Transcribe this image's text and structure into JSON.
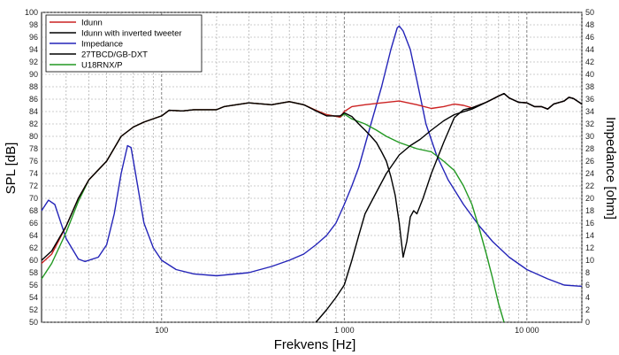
{
  "chart_data": {
    "type": "line",
    "xlabel": "Frekvens [Hz]",
    "ylabel": "SPL [dB]",
    "y2label": "Impedance [ohm]",
    "xscale": "log",
    "xlim": [
      22,
      20000
    ],
    "ylim": [
      50,
      100
    ],
    "y2lim": [
      0,
      50
    ],
    "x_tick_labels": [
      "100",
      "1 000",
      "10 000"
    ],
    "y_tick_labels": [
      "50",
      "52",
      "54",
      "56",
      "58",
      "60",
      "62",
      "64",
      "66",
      "68",
      "70",
      "72",
      "74",
      "76",
      "78",
      "80",
      "82",
      "84",
      "86",
      "88",
      "90",
      "92",
      "94",
      "96",
      "98",
      "100"
    ],
    "y2_tick_labels": [
      "0",
      "2",
      "4",
      "6",
      "8",
      "10",
      "12",
      "14",
      "16",
      "18",
      "20",
      "22",
      "24",
      "26",
      "28",
      "30",
      "32",
      "34",
      "36",
      "38",
      "40",
      "42",
      "44",
      "46",
      "48",
      "50"
    ],
    "grid": true,
    "legend_position": "top-left",
    "series": [
      {
        "name": "Idunn",
        "color": "#cc2222",
        "axis": "left",
        "points": [
          [
            22,
            59.5
          ],
          [
            25,
            61
          ],
          [
            30,
            65.5
          ],
          [
            35,
            70
          ],
          [
            40,
            73
          ],
          [
            50,
            76
          ],
          [
            60,
            80
          ],
          [
            70,
            81.5
          ],
          [
            80,
            82.3
          ],
          [
            100,
            83.3
          ],
          [
            110,
            84.2
          ],
          [
            130,
            84.1
          ],
          [
            150,
            84.3
          ],
          [
            200,
            84.3
          ],
          [
            220,
            84.8
          ],
          [
            300,
            85.4
          ],
          [
            400,
            85.1
          ],
          [
            500,
            85.6
          ],
          [
            600,
            85.1
          ],
          [
            700,
            84.2
          ],
          [
            800,
            83.5
          ],
          [
            950,
            83.1
          ],
          [
            1000,
            84
          ],
          [
            1100,
            84.8
          ],
          [
            1300,
            85.1
          ],
          [
            1600,
            85.4
          ],
          [
            2000,
            85.7
          ],
          [
            2500,
            85.1
          ],
          [
            3000,
            84.5
          ],
          [
            3500,
            84.8
          ],
          [
            4000,
            85.2
          ],
          [
            4500,
            85
          ],
          [
            5000,
            84.6
          ],
          [
            6000,
            85.5
          ],
          [
            7000,
            86.5
          ],
          [
            7500,
            86.9
          ],
          [
            8000,
            86.2
          ],
          [
            9000,
            85.5
          ],
          [
            10000,
            85.4
          ],
          [
            11000,
            84.8
          ],
          [
            12000,
            84.8
          ],
          [
            13000,
            84.4
          ],
          [
            14000,
            85.2
          ],
          [
            16000,
            85.7
          ],
          [
            17000,
            86.3
          ],
          [
            18000,
            86.1
          ],
          [
            20000,
            85.2
          ]
        ]
      },
      {
        "name": "Idunn with inverted tweeter",
        "color": "#000000",
        "axis": "left",
        "points": [
          [
            22,
            60
          ],
          [
            25,
            61.5
          ],
          [
            30,
            65.5
          ],
          [
            35,
            70
          ],
          [
            40,
            73
          ],
          [
            50,
            76
          ],
          [
            60,
            80
          ],
          [
            70,
            81.5
          ],
          [
            80,
            82.3
          ],
          [
            100,
            83.3
          ],
          [
            110,
            84.2
          ],
          [
            130,
            84.1
          ],
          [
            150,
            84.3
          ],
          [
            200,
            84.3
          ],
          [
            220,
            84.8
          ],
          [
            300,
            85.4
          ],
          [
            400,
            85.1
          ],
          [
            500,
            85.6
          ],
          [
            600,
            85.1
          ],
          [
            700,
            84.1
          ],
          [
            800,
            83.3
          ],
          [
            950,
            83.3
          ],
          [
            1000,
            83.8
          ],
          [
            1100,
            83.2
          ],
          [
            1200,
            82
          ],
          [
            1300,
            81
          ],
          [
            1400,
            80
          ],
          [
            1500,
            79
          ],
          [
            1600,
            77.5
          ],
          [
            1700,
            76
          ],
          [
            1800,
            73.5
          ],
          [
            1900,
            70.5
          ],
          [
            2000,
            66
          ],
          [
            2100,
            60.5
          ],
          [
            2200,
            63
          ],
          [
            2300,
            67
          ],
          [
            2400,
            68
          ],
          [
            2500,
            67.5
          ],
          [
            2700,
            70
          ],
          [
            3000,
            74
          ],
          [
            3500,
            79
          ],
          [
            4000,
            83
          ],
          [
            4500,
            84.3
          ],
          [
            5000,
            84.6
          ],
          [
            6000,
            85.5
          ],
          [
            7000,
            86.5
          ],
          [
            7500,
            86.9
          ],
          [
            8000,
            86.2
          ],
          [
            9000,
            85.5
          ],
          [
            10000,
            85.4
          ],
          [
            11000,
            84.8
          ],
          [
            12000,
            84.8
          ],
          [
            13000,
            84.4
          ],
          [
            14000,
            85.2
          ],
          [
            16000,
            85.7
          ],
          [
            17000,
            86.3
          ],
          [
            18000,
            86.1
          ],
          [
            20000,
            85.2
          ]
        ]
      },
      {
        "name": "Impedance",
        "color": "#2424b8",
        "axis": "right",
        "points": [
          [
            22,
            18
          ],
          [
            24,
            19.7
          ],
          [
            26,
            19
          ],
          [
            30,
            13.5
          ],
          [
            35,
            10.2
          ],
          [
            38,
            9.8
          ],
          [
            45,
            10.5
          ],
          [
            50,
            12.5
          ],
          [
            55,
            17.5
          ],
          [
            60,
            24
          ],
          [
            65,
            28.5
          ],
          [
            68,
            28.2
          ],
          [
            72,
            24
          ],
          [
            80,
            16
          ],
          [
            90,
            12
          ],
          [
            100,
            10
          ],
          [
            120,
            8.5
          ],
          [
            150,
            7.8
          ],
          [
            200,
            7.5
          ],
          [
            300,
            8
          ],
          [
            400,
            9
          ],
          [
            500,
            10
          ],
          [
            600,
            11
          ],
          [
            700,
            12.5
          ],
          [
            800,
            14
          ],
          [
            900,
            16
          ],
          [
            1000,
            19
          ],
          [
            1100,
            22
          ],
          [
            1200,
            25
          ],
          [
            1400,
            32
          ],
          [
            1600,
            38
          ],
          [
            1800,
            44
          ],
          [
            1950,
            47.5
          ],
          [
            2000,
            47.8
          ],
          [
            2100,
            47
          ],
          [
            2300,
            44
          ],
          [
            2500,
            39
          ],
          [
            2800,
            32
          ],
          [
            3200,
            27
          ],
          [
            3700,
            23
          ],
          [
            4500,
            19
          ],
          [
            5500,
            15.5
          ],
          [
            6500,
            13
          ],
          [
            8000,
            10.5
          ],
          [
            10000,
            8.5
          ],
          [
            13000,
            7
          ],
          [
            16000,
            6
          ],
          [
            20000,
            5.8
          ]
        ]
      },
      {
        "name": "27TBCD/GB-DXT",
        "color": "#000000",
        "axis": "left",
        "points": [
          [
            700,
            50
          ],
          [
            800,
            52
          ],
          [
            900,
            54
          ],
          [
            1000,
            56
          ],
          [
            1100,
            60
          ],
          [
            1200,
            64
          ],
          [
            1300,
            67.5
          ],
          [
            1500,
            71
          ],
          [
            1700,
            74
          ],
          [
            2000,
            77
          ],
          [
            2300,
            78.5
          ],
          [
            2600,
            79.5
          ],
          [
            3000,
            81
          ],
          [
            3500,
            82.5
          ],
          [
            4000,
            83.5
          ],
          [
            5000,
            84.4
          ],
          [
            6000,
            85.5
          ],
          [
            7000,
            86.5
          ],
          [
            7500,
            86.9
          ],
          [
            8000,
            86.2
          ],
          [
            9000,
            85.5
          ],
          [
            10000,
            85.4
          ],
          [
            11000,
            84.8
          ],
          [
            12000,
            84.8
          ],
          [
            13000,
            84.4
          ],
          [
            14000,
            85.2
          ],
          [
            16000,
            85.7
          ],
          [
            17000,
            86.3
          ],
          [
            18000,
            86.1
          ],
          [
            20000,
            85.2
          ]
        ]
      },
      {
        "name": "U18RNX/P",
        "color": "#229922",
        "axis": "left",
        "points": [
          [
            22,
            57
          ],
          [
            25,
            59.5
          ],
          [
            30,
            64.5
          ],
          [
            35,
            69.5
          ],
          [
            40,
            73
          ],
          [
            50,
            76
          ],
          [
            60,
            80
          ],
          [
            70,
            81.5
          ],
          [
            80,
            82.3
          ],
          [
            100,
            83.3
          ],
          [
            110,
            84.2
          ],
          [
            130,
            84.1
          ],
          [
            150,
            84.3
          ],
          [
            200,
            84.3
          ],
          [
            220,
            84.8
          ],
          [
            300,
            85.4
          ],
          [
            400,
            85.1
          ],
          [
            500,
            85.6
          ],
          [
            600,
            85.1
          ],
          [
            700,
            84.2
          ],
          [
            800,
            83.5
          ],
          [
            950,
            83.1
          ],
          [
            1000,
            83.6
          ],
          [
            1100,
            82.8
          ],
          [
            1300,
            82
          ],
          [
            1500,
            81
          ],
          [
            1700,
            80
          ],
          [
            2000,
            79
          ],
          [
            2500,
            78
          ],
          [
            3000,
            77.5
          ],
          [
            3500,
            76
          ],
          [
            4000,
            74.5
          ],
          [
            4500,
            72
          ],
          [
            5000,
            69
          ],
          [
            5500,
            65
          ],
          [
            6000,
            61
          ],
          [
            6500,
            57
          ],
          [
            7000,
            53
          ],
          [
            7500,
            50
          ]
        ]
      }
    ]
  }
}
